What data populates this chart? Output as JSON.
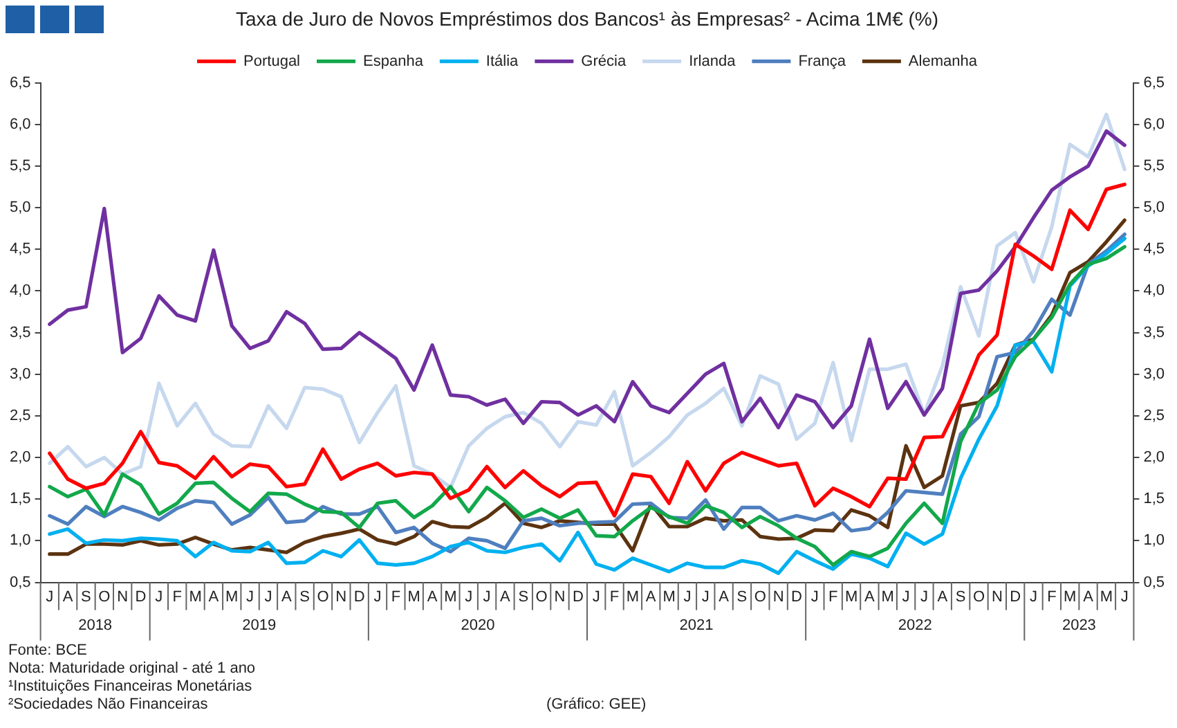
{
  "chart_data": {
    "type": "line",
    "title": "Taxa de Juro de Novos Empréstimos dos Bancos¹ às Empresas² - Acima 1M€ (%)",
    "categories": [
      "J",
      "A",
      "S",
      "O",
      "N",
      "D",
      "J",
      "F",
      "M",
      "A",
      "M",
      "J",
      "J",
      "A",
      "S",
      "O",
      "N",
      "D",
      "J",
      "F",
      "M",
      "A",
      "M",
      "J",
      "J",
      "A",
      "S",
      "O",
      "N",
      "D",
      "J",
      "F",
      "M",
      "A",
      "M",
      "J",
      "J",
      "A",
      "S",
      "O",
      "N",
      "D",
      "J",
      "F",
      "M",
      "A",
      "M",
      "J",
      "J",
      "A",
      "S",
      "O",
      "N",
      "D",
      "J",
      "F",
      "M",
      "A",
      "M",
      "J"
    ],
    "series": [
      {
        "name": "Portugal",
        "color": "#ff0000",
        "values": [
          2.05,
          1.74,
          1.63,
          1.69,
          1.93,
          2.31,
          1.94,
          1.9,
          1.75,
          2.01,
          1.77,
          1.92,
          1.89,
          1.65,
          1.68,
          2.1,
          1.74,
          1.86,
          1.93,
          1.78,
          1.82,
          1.8,
          1.51,
          1.61,
          1.89,
          1.64,
          1.84,
          1.66,
          1.53,
          1.69,
          1.7,
          1.3,
          1.8,
          1.77,
          1.45,
          1.95,
          1.6,
          1.93,
          2.06,
          1.98,
          1.9,
          1.93,
          1.42,
          1.63,
          1.53,
          1.41,
          1.75,
          1.74,
          2.24,
          2.25,
          2.7,
          3.23,
          3.47,
          4.56,
          4.42,
          4.26,
          4.97,
          4.74,
          5.22,
          5.28
        ]
      },
      {
        "name": "Espanha",
        "color": "#12a84b",
        "values": [
          1.65,
          1.53,
          1.62,
          1.31,
          1.8,
          1.67,
          1.32,
          1.45,
          1.69,
          1.7,
          1.51,
          1.35,
          1.57,
          1.56,
          1.44,
          1.35,
          1.34,
          1.16,
          1.45,
          1.48,
          1.28,
          1.42,
          1.65,
          1.35,
          1.64,
          1.48,
          1.28,
          1.38,
          1.27,
          1.37,
          1.06,
          1.05,
          1.24,
          1.4,
          1.29,
          1.21,
          1.42,
          1.34,
          1.16,
          1.29,
          1.18,
          1.03,
          0.93,
          0.71,
          0.87,
          0.81,
          0.91,
          1.21,
          1.45,
          1.21,
          2.19,
          2.65,
          2.81,
          3.21,
          3.42,
          3.68,
          4.08,
          4.32,
          4.39,
          4.53
        ]
      },
      {
        "name": "Itália",
        "color": "#00b0f0",
        "values": [
          1.08,
          1.14,
          0.97,
          1.01,
          1.0,
          1.03,
          1.02,
          1.0,
          0.81,
          0.98,
          0.88,
          0.87,
          0.98,
          0.73,
          0.74,
          0.88,
          0.81,
          1.01,
          0.73,
          0.71,
          0.73,
          0.81,
          0.93,
          0.98,
          0.88,
          0.86,
          0.92,
          0.96,
          0.76,
          1.1,
          0.72,
          0.65,
          0.79,
          0.71,
          0.63,
          0.73,
          0.68,
          0.68,
          0.76,
          0.72,
          0.61,
          0.87,
          0.76,
          0.66,
          0.84,
          0.79,
          0.69,
          1.09,
          0.96,
          1.08,
          1.75,
          2.22,
          2.62,
          3.35,
          3.39,
          3.03,
          4.06,
          4.3,
          4.45,
          4.63
        ]
      },
      {
        "name": "Grécia",
        "color": "#7030a0",
        "values": [
          3.6,
          3.77,
          3.81,
          4.99,
          3.26,
          3.43,
          3.94,
          3.71,
          3.64,
          4.49,
          3.58,
          3.31,
          3.4,
          3.75,
          3.61,
          3.3,
          3.31,
          3.5,
          3.35,
          3.19,
          2.81,
          3.35,
          2.75,
          2.73,
          2.63,
          2.7,
          2.41,
          2.67,
          2.66,
          2.51,
          2.62,
          2.43,
          2.91,
          2.62,
          2.54,
          2.77,
          3.0,
          3.13,
          2.43,
          2.71,
          2.36,
          2.75,
          2.67,
          2.36,
          2.62,
          3.42,
          2.59,
          2.91,
          2.51,
          2.83,
          3.97,
          4.01,
          4.24,
          4.53,
          4.88,
          5.21,
          5.37,
          5.5,
          5.92,
          5.75
        ]
      },
      {
        "name": "Irlanda",
        "color": "#c6d8ee",
        "values": [
          1.93,
          2.13,
          1.89,
          2.0,
          1.8,
          1.89,
          2.89,
          2.38,
          2.65,
          2.28,
          2.14,
          2.13,
          2.62,
          2.35,
          2.84,
          2.82,
          2.73,
          2.18,
          2.54,
          2.86,
          1.9,
          1.8,
          1.64,
          2.14,
          2.35,
          2.49,
          2.54,
          2.41,
          2.13,
          2.43,
          2.39,
          2.79,
          1.9,
          2.06,
          2.25,
          2.51,
          2.65,
          2.83,
          2.38,
          2.98,
          2.88,
          2.22,
          2.41,
          3.14,
          2.2,
          3.06,
          3.06,
          3.12,
          2.52,
          3.1,
          4.05,
          3.46,
          4.54,
          4.7,
          4.11,
          4.77,
          5.76,
          5.61,
          6.12,
          5.46
        ]
      },
      {
        "name": "França",
        "color": "#4f7fbf",
        "values": [
          1.3,
          1.2,
          1.41,
          1.29,
          1.41,
          1.34,
          1.25,
          1.39,
          1.48,
          1.46,
          1.2,
          1.31,
          1.52,
          1.22,
          1.24,
          1.41,
          1.32,
          1.32,
          1.41,
          1.1,
          1.16,
          0.97,
          0.87,
          1.03,
          1.0,
          0.91,
          1.24,
          1.27,
          1.18,
          1.21,
          1.22,
          1.23,
          1.44,
          1.45,
          1.28,
          1.27,
          1.49,
          1.14,
          1.4,
          1.4,
          1.24,
          1.3,
          1.25,
          1.33,
          1.12,
          1.15,
          1.34,
          1.6,
          1.58,
          1.56,
          2.28,
          2.49,
          3.21,
          3.26,
          3.52,
          3.9,
          3.71,
          4.32,
          4.48,
          4.68
        ]
      },
      {
        "name": "Alemanha",
        "color": "#5c3310",
        "values": [
          0.84,
          0.84,
          0.96,
          0.96,
          0.95,
          1.0,
          0.95,
          0.96,
          1.04,
          0.96,
          0.89,
          0.92,
          0.89,
          0.86,
          0.98,
          1.05,
          1.09,
          1.14,
          1.01,
          0.96,
          1.05,
          1.23,
          1.17,
          1.16,
          1.28,
          1.45,
          1.21,
          1.16,
          1.24,
          1.22,
          1.2,
          1.2,
          0.88,
          1.44,
          1.17,
          1.17,
          1.27,
          1.24,
          1.25,
          1.05,
          1.02,
          1.03,
          1.13,
          1.12,
          1.37,
          1.3,
          1.16,
          2.14,
          1.64,
          1.78,
          2.62,
          2.66,
          2.89,
          3.35,
          3.42,
          3.71,
          4.22,
          4.35,
          4.59,
          4.85
        ]
      }
    ],
    "ylim": [
      0.5,
      6.5
    ],
    "yticks": [
      {
        "value": 0.5,
        "label": "0,5"
      },
      {
        "value": 1,
        "label": "1,0"
      },
      {
        "value": 1.5,
        "label": "1,5"
      },
      {
        "value": 2,
        "label": "2,0"
      },
      {
        "value": 2.5,
        "label": "2,5"
      },
      {
        "value": 3,
        "label": "3,0"
      },
      {
        "value": 3.5,
        "label": "3,5"
      },
      {
        "value": 4,
        "label": "4,0"
      },
      {
        "value": 4.5,
        "label": "4,5"
      },
      {
        "value": 5,
        "label": "5,0"
      },
      {
        "value": 5.5,
        "label": "5,5"
      },
      {
        "value": 6,
        "label": "6,0"
      },
      {
        "value": 6.5,
        "label": "6,5"
      }
    ],
    "y2lim": [
      0.5,
      6.5
    ],
    "y2ticks": [
      {
        "value": 0.5,
        "label": "0,5"
      },
      {
        "value": 1,
        "label": "1,0"
      },
      {
        "value": 1.5,
        "label": "1,5"
      },
      {
        "value": 2,
        "label": "2,0"
      },
      {
        "value": 2.5,
        "label": "2,5"
      },
      {
        "value": 3,
        "label": "3,0"
      },
      {
        "value": 3.5,
        "label": "3,5"
      },
      {
        "value": 4,
        "label": "4,0"
      },
      {
        "value": 4.5,
        "label": "4,5"
      },
      {
        "value": 5,
        "label": "5,0"
      },
      {
        "value": 5.5,
        "label": "5,5"
      },
      {
        "value": 6,
        "label": "6,0"
      },
      {
        "value": 6.5,
        "label": "6,5"
      }
    ],
    "grid": false,
    "legend": "top",
    "marker": "none",
    "line_style": "solid",
    "annotations": [
      "Fonte: BCE",
      "Nota: Maturidade original - até 1 ano",
      "¹Instituições Financeiras Monetárias",
      "²Sociedades Não Financeiras",
      "(Gráfico: GEE)",
      "2018",
      "2019",
      "2020",
      "2021",
      "2022",
      "2023"
    ]
  }
}
